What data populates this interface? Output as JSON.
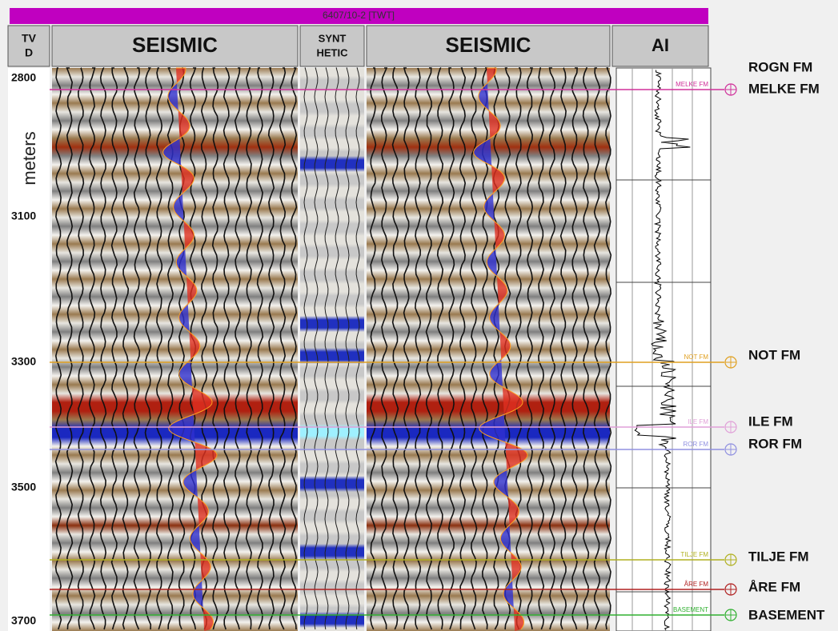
{
  "header": {
    "title": "6407/10-2 [TWT]"
  },
  "columns": [
    {
      "lines": [
        "TV",
        "D"
      ]
    },
    {
      "lines": [
        "SEISMIC"
      ]
    },
    {
      "lines": [
        "SYNT",
        "HETIC"
      ]
    },
    {
      "lines": [
        "SEISMIC"
      ]
    },
    {
      "lines": [
        "AI"
      ]
    }
  ],
  "depth_axis": {
    "unit": "meters",
    "labels": [
      "2800",
      "3100",
      "3300",
      "3500",
      "3700"
    ]
  },
  "formations": [
    {
      "name": "ROGN FM"
    },
    {
      "name": "MELKE FM"
    },
    {
      "name": "NOT FM"
    },
    {
      "name": "ILE FM"
    },
    {
      "name": "ROR FM"
    },
    {
      "name": "TILJE FM"
    },
    {
      "name": "ÅRE FM"
    },
    {
      "name": "BASEMENT"
    }
  ]
}
